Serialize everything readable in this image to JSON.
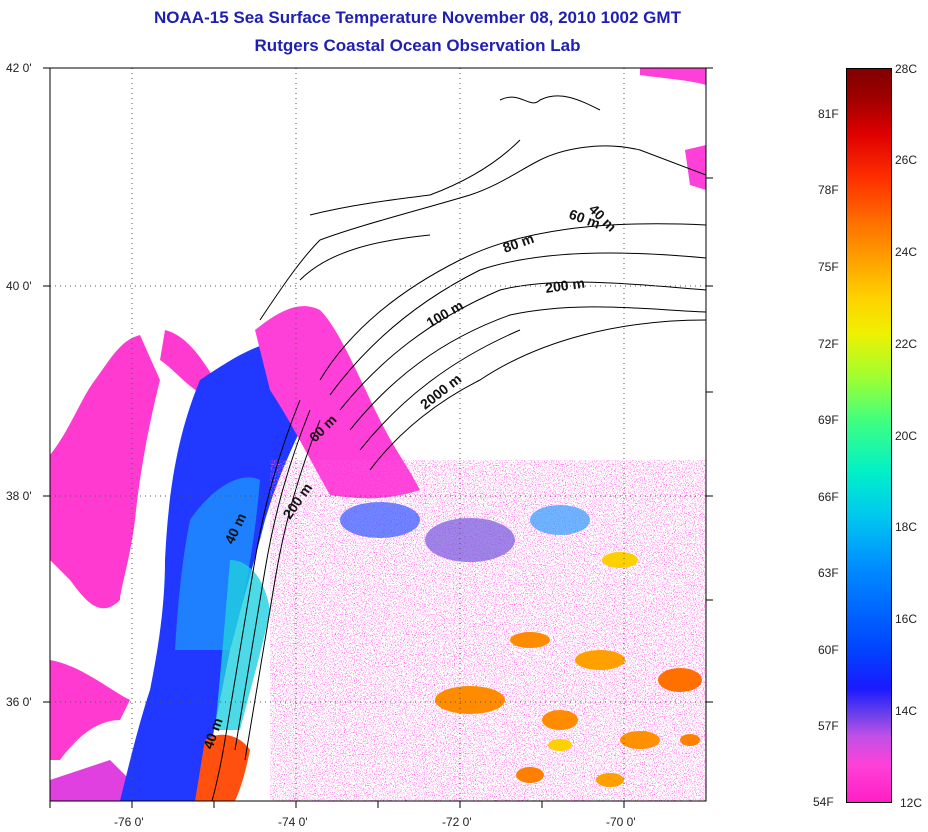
{
  "title": {
    "line1": "NOAA-15 Sea Surface Temperature November 08, 2010 1002 GMT",
    "line2": "Rutgers Coastal Ocean Observation Lab"
  },
  "axes": {
    "latitude_labels": [
      "42 0'",
      "40 0'",
      "38 0'",
      "36 0'"
    ],
    "longitude_labels": [
      "-76 0'",
      "-74 0'",
      "-72 0'",
      "-70 0'"
    ]
  },
  "contour_labels": [
    "40 m",
    "60 m",
    "80 m",
    "200 m",
    "100 m",
    "2000 m",
    "60 m",
    "200 m",
    "40 m",
    "40 m"
  ],
  "colorbar": {
    "fahrenheit": [
      "81F",
      "78F",
      "75F",
      "72F",
      "69F",
      "66F",
      "63F",
      "60F",
      "57F",
      "54F"
    ],
    "celsius": [
      "28C",
      "26C",
      "24C",
      "22C",
      "20C",
      "18C",
      "16C",
      "14C",
      "12C"
    ]
  },
  "colors": {
    "title": "#1f1fb4",
    "cold_magenta": "#ff1fc4",
    "blue": "#1a1aff",
    "cyan": "#00c8f0",
    "orange": "#ff8000",
    "red": "#ff2000"
  }
}
